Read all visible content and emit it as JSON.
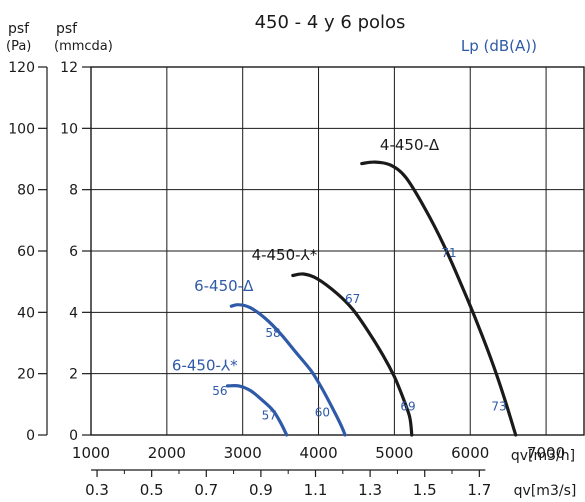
{
  "chart_data": {
    "type": "line",
    "title": "450 - 4 y 6 polos",
    "left_axis": {
      "label_top": "psf",
      "unit": "(Pa)",
      "ticks": [
        "0",
        "20",
        "40",
        "60",
        "80",
        "100",
        "120"
      ],
      "ylim": [
        0,
        120
      ]
    },
    "inner_axis": {
      "label_top": "psf",
      "unit": "(mmcda)",
      "ticks": [
        "0",
        "2",
        "4",
        "6",
        "8",
        "10",
        "12"
      ]
    },
    "x_axis_m3h": {
      "ticks": [
        "1000",
        "2000",
        "3000",
        "4000",
        "5000",
        "6000",
        "7000"
      ],
      "label": "qv[m3/h]",
      "xlim": [
        1000,
        7500
      ]
    },
    "x_axis_m3s": {
      "ticks": [
        "0.3",
        "0.5",
        "0.7",
        "0.9",
        "1.1",
        "1.3",
        "1.5",
        "1.7"
      ],
      "label": "qv[m3/s]"
    },
    "legend_note": "Lp (dB(A))",
    "grid": true,
    "series": [
      {
        "name": "4-450-Δ",
        "color": "#1a1a1a",
        "points": [
          [
            4570,
            88.5
          ],
          [
            4750,
            89
          ],
          [
            4950,
            88
          ],
          [
            5150,
            84
          ],
          [
            5400,
            74
          ],
          [
            5650,
            62
          ],
          [
            5900,
            48
          ],
          [
            6100,
            36
          ],
          [
            6300,
            23
          ],
          [
            6450,
            12
          ],
          [
            6600,
            0
          ]
        ],
        "noise_labels": [
          {
            "value": "71",
            "at": [
              5720,
              58
            ]
          },
          {
            "value": "73",
            "at": [
              6380,
              8
            ]
          }
        ]
      },
      {
        "name": "4-450-⅄*",
        "color": "#1a1a1a",
        "points": [
          [
            3660,
            52
          ],
          [
            3800,
            52.5
          ],
          [
            3980,
            51
          ],
          [
            4250,
            46
          ],
          [
            4450,
            41
          ],
          [
            4650,
            34
          ],
          [
            4850,
            26
          ],
          [
            5000,
            19
          ],
          [
            5100,
            13
          ],
          [
            5200,
            6
          ],
          [
            5230,
            0
          ]
        ],
        "noise_labels": [
          {
            "value": "67",
            "at": [
              4450,
              43
            ]
          },
          {
            "value": "69",
            "at": [
              5180,
              8
            ]
          }
        ]
      },
      {
        "name": "6-450-Δ",
        "color": "#2f5aa8",
        "points": [
          [
            2850,
            42
          ],
          [
            2950,
            42.5
          ],
          [
            3100,
            41.5
          ],
          [
            3300,
            38
          ],
          [
            3500,
            33
          ],
          [
            3700,
            27
          ],
          [
            3900,
            21
          ],
          [
            4050,
            15
          ],
          [
            4200,
            8
          ],
          [
            4300,
            3
          ],
          [
            4350,
            0
          ]
        ],
        "noise_labels": [
          {
            "value": "58",
            "at": [
              3400,
              32
            ]
          },
          {
            "value": "60",
            "at": [
              4050,
              6
            ]
          }
        ]
      },
      {
        "name": "6-450-⅄*",
        "color": "#2f5aa8",
        "points": [
          [
            2800,
            16
          ],
          [
            2950,
            16
          ],
          [
            3100,
            14.5
          ],
          [
            3250,
            11.5
          ],
          [
            3400,
            8
          ],
          [
            3500,
            4
          ],
          [
            3580,
            0
          ]
        ],
        "noise_labels": [
          {
            "value": "56",
            "at": [
              2700,
              13
            ]
          },
          {
            "value": "57",
            "at": [
              3350,
              5
            ]
          }
        ]
      }
    ],
    "curve_labels": [
      {
        "text": "4-450-Δ",
        "at": [
          5200,
          93
        ],
        "color": "#1a1a1a"
      },
      {
        "text": "4-450-⅄*",
        "at": [
          3550,
          57
        ],
        "color": "#1a1a1a"
      },
      {
        "text": "6-450-Δ",
        "at": [
          2750,
          47
        ],
        "color": "#2f5aa8"
      },
      {
        "text": "6-450-⅄*",
        "at": [
          2500,
          21
        ],
        "color": "#2f5aa8"
      }
    ]
  }
}
